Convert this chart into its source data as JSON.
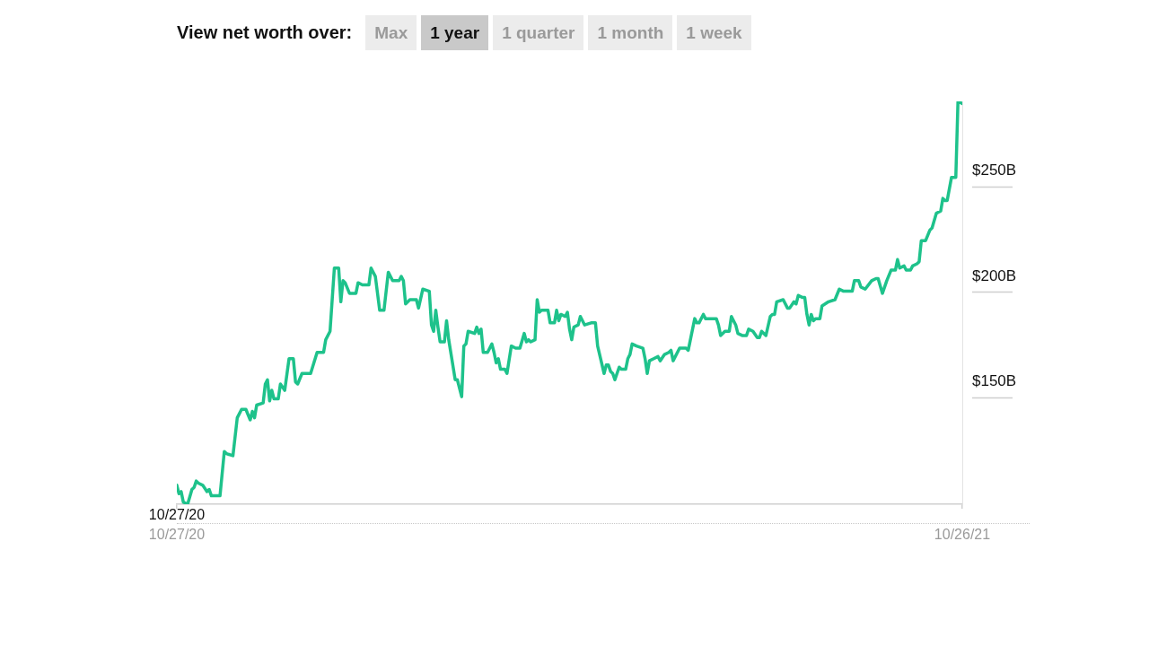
{
  "chart_data": {
    "type": "line",
    "title": "View net worth over:",
    "color": "#1ec28b",
    "x": [
      "2020-10-27",
      "2020-10-28",
      "2020-10-29",
      "2020-10-30",
      "2020-11-01",
      "2020-11-03",
      "2020-11-04",
      "2020-11-05",
      "2020-11-06",
      "2020-11-08",
      "2020-11-10",
      "2020-11-11",
      "2020-11-12",
      "2020-11-16",
      "2020-11-18",
      "2020-11-19",
      "2020-11-22",
      "2020-11-24",
      "2020-11-26",
      "2020-11-28",
      "2020-11-30",
      "2020-12-01",
      "2020-12-02",
      "2020-12-03",
      "2020-12-06",
      "2020-12-07",
      "2020-12-08",
      "2020-12-09",
      "2020-12-10",
      "2020-12-11",
      "2020-12-13",
      "2020-12-14",
      "2020-12-16",
      "2020-12-18",
      "2020-12-20",
      "2020-12-21",
      "2020-12-22",
      "2020-12-24",
      "2020-12-28",
      "2020-12-31",
      "2021-01-03",
      "2021-01-04",
      "2021-01-06",
      "2021-01-08",
      "2021-01-10",
      "2021-01-11",
      "2021-01-12",
      "2021-01-13",
      "2021-01-15",
      "2021-01-18",
      "2021-01-19",
      "2021-01-21",
      "2021-01-24",
      "2021-01-25",
      "2021-01-27",
      "2021-01-29",
      "2021-01-31",
      "2021-02-02",
      "2021-02-04",
      "2021-02-07",
      "2021-02-08",
      "2021-02-09",
      "2021-02-10",
      "2021-02-12",
      "2021-02-15",
      "2021-02-16",
      "2021-02-18",
      "2021-02-21",
      "2021-02-22",
      "2021-02-23",
      "2021-02-24",
      "2021-02-25",
      "2021-02-26",
      "2021-02-28",
      "2021-03-01",
      "2021-03-02",
      "2021-03-05",
      "2021-03-06",
      "2021-03-08",
      "2021-03-09",
      "2021-03-10",
      "2021-03-11",
      "2021-03-14",
      "2021-03-15",
      "2021-03-16",
      "2021-03-17",
      "2021-03-18",
      "2021-03-20",
      "2021-03-22",
      "2021-03-23",
      "2021-03-24",
      "2021-03-25",
      "2021-03-26",
      "2021-03-28",
      "2021-03-29",
      "2021-03-31",
      "2021-04-02",
      "2021-04-04",
      "2021-04-06",
      "2021-04-07",
      "2021-04-08",
      "2021-04-09",
      "2021-04-11",
      "2021-04-12",
      "2021-04-13",
      "2021-04-14",
      "2021-04-17",
      "2021-04-18",
      "2021-04-20",
      "2021-04-21",
      "2021-04-22",
      "2021-04-23",
      "2021-04-25",
      "2021-04-26",
      "2021-04-27",
      "2021-04-28",
      "2021-04-29",
      "2021-05-01",
      "2021-05-02",
      "2021-05-04",
      "2021-05-07",
      "2021-05-09",
      "2021-05-10",
      "2021-05-13",
      "2021-05-14",
      "2021-05-15",
      "2021-05-16",
      "2021-05-17",
      "2021-05-18",
      "2021-05-20",
      "2021-05-21",
      "2021-05-23",
      "2021-05-24",
      "2021-05-25",
      "2021-05-26",
      "2021-05-28",
      "2021-05-31",
      "2021-06-01",
      "2021-06-02",
      "2021-06-03",
      "2021-06-05",
      "2021-06-07",
      "2021-06-08",
      "2021-06-10",
      "2021-06-12",
      "2021-06-13",
      "2021-06-14",
      "2021-06-17",
      "2021-06-20",
      "2021-06-21",
      "2021-06-24",
      "2021-06-25",
      "2021-06-26",
      "2021-06-28",
      "2021-06-29",
      "2021-07-01",
      "2021-07-04",
      "2021-07-05",
      "2021-07-06",
      "2021-07-08",
      "2021-07-10",
      "2021-07-11",
      "2021-07-13",
      "2021-07-14",
      "2021-07-16",
      "2021-07-18",
      "2021-07-19",
      "2021-07-21",
      "2021-07-23",
      "2021-07-24",
      "2021-07-25",
      "2021-07-27",
      "2021-07-29",
      "2021-07-30",
      "2021-07-31",
      "2021-08-01",
      "2021-08-04",
      "2021-08-06",
      "2021-08-07",
      "2021-08-09",
      "2021-08-10",
      "2021-08-11",
      "2021-08-13",
      "2021-08-14",
      "2021-08-15",
      "2021-08-16",
      "2021-08-17",
      "2021-08-18",
      "2021-08-19",
      "2021-08-21",
      "2021-08-22",
      "2021-08-25",
      "2021-08-28",
      "2021-08-30",
      "2021-09-01",
      "2021-09-05",
      "2021-09-06",
      "2021-09-08",
      "2021-09-09",
      "2021-09-11",
      "2021-09-14",
      "2021-09-16",
      "2021-09-17",
      "2021-09-19",
      "2021-09-21",
      "2021-09-23",
      "2021-09-25",
      "2021-09-26",
      "2021-09-27",
      "2021-09-29",
      "2021-09-30",
      "2021-10-02",
      "2021-10-03",
      "2021-10-05",
      "2021-10-06",
      "2021-10-07",
      "2021-10-09",
      "2021-10-11",
      "2021-10-12",
      "2021-10-14",
      "2021-10-16",
      "2021-10-17",
      "2021-10-18",
      "2021-10-19",
      "2021-10-21",
      "2021-10-23",
      "2021-10-24",
      "2021-10-26"
    ],
    "values": [
      101,
      97,
      98,
      93,
      92,
      99,
      100,
      103,
      102,
      101,
      98,
      99,
      96,
      96,
      117,
      116,
      115,
      133,
      137,
      137,
      132,
      136,
      133,
      139,
      140,
      149,
      151,
      141,
      146,
      142,
      142,
      149,
      146,
      161,
      161,
      150,
      149,
      154,
      154,
      164,
      164,
      170,
      174,
      204,
      204,
      188,
      198,
      197,
      192,
      192,
      197,
      196,
      196,
      204,
      200,
      184,
      184,
      202,
      198,
      198,
      200,
      198,
      187,
      189,
      189,
      185,
      194,
      193,
      177,
      174,
      184,
      176,
      169,
      169,
      179,
      170,
      151,
      151,
      143,
      167,
      168,
      174,
      173,
      176,
      173,
      175,
      164,
      164,
      168,
      164,
      159,
      161,
      156,
      156,
      154,
      167,
      166,
      166,
      173,
      169,
      170,
      169,
      170,
      189,
      183,
      184,
      184,
      178,
      178,
      184,
      179,
      182,
      181,
      183,
      175,
      170,
      176,
      177,
      181,
      177,
      178,
      178,
      167,
      154,
      158,
      158,
      155,
      154,
      151,
      157,
      156,
      156,
      161,
      163,
      168,
      167,
      166,
      161,
      154,
      160,
      161,
      162,
      160,
      163,
      164,
      165,
      160,
      166,
      166,
      165,
      180,
      178,
      178,
      182,
      180,
      180,
      180,
      177,
      172,
      174,
      174,
      181,
      177,
      173,
      172,
      172,
      175,
      174,
      171,
      171,
      174,
      172,
      181,
      182,
      182,
      188,
      189,
      185,
      185,
      188,
      187,
      191,
      190,
      190,
      182,
      177,
      182,
      179,
      180,
      180,
      186,
      188,
      189,
      194,
      193,
      193,
      198,
      198,
      195,
      194,
      198,
      199,
      199,
      192,
      198,
      203,
      203,
      208,
      204,
      205,
      203,
      203,
      205,
      206,
      207,
      217,
      217,
      222,
      223,
      230,
      231,
      237,
      236,
      236,
      247,
      247,
      283,
      282
    ],
    "xlim": [
      "2020-10-27",
      "2021-10-26"
    ],
    "xticks": [
      {
        "value": "2020-10-27",
        "label": "10/27/20"
      },
      {
        "value": "2021-10-26",
        "label": "10/26/21"
      }
    ],
    "ylim": [
      92,
      283
    ],
    "yticks": [
      {
        "value": 150,
        "label": "$150B"
      },
      {
        "value": 200,
        "label": "$200B"
      },
      {
        "value": 250,
        "label": "$250B"
      }
    ],
    "annotations": [
      "Max",
      "1 year",
      "1 quarter",
      "1 month",
      "1 week",
      "10/27/20"
    ]
  }
}
